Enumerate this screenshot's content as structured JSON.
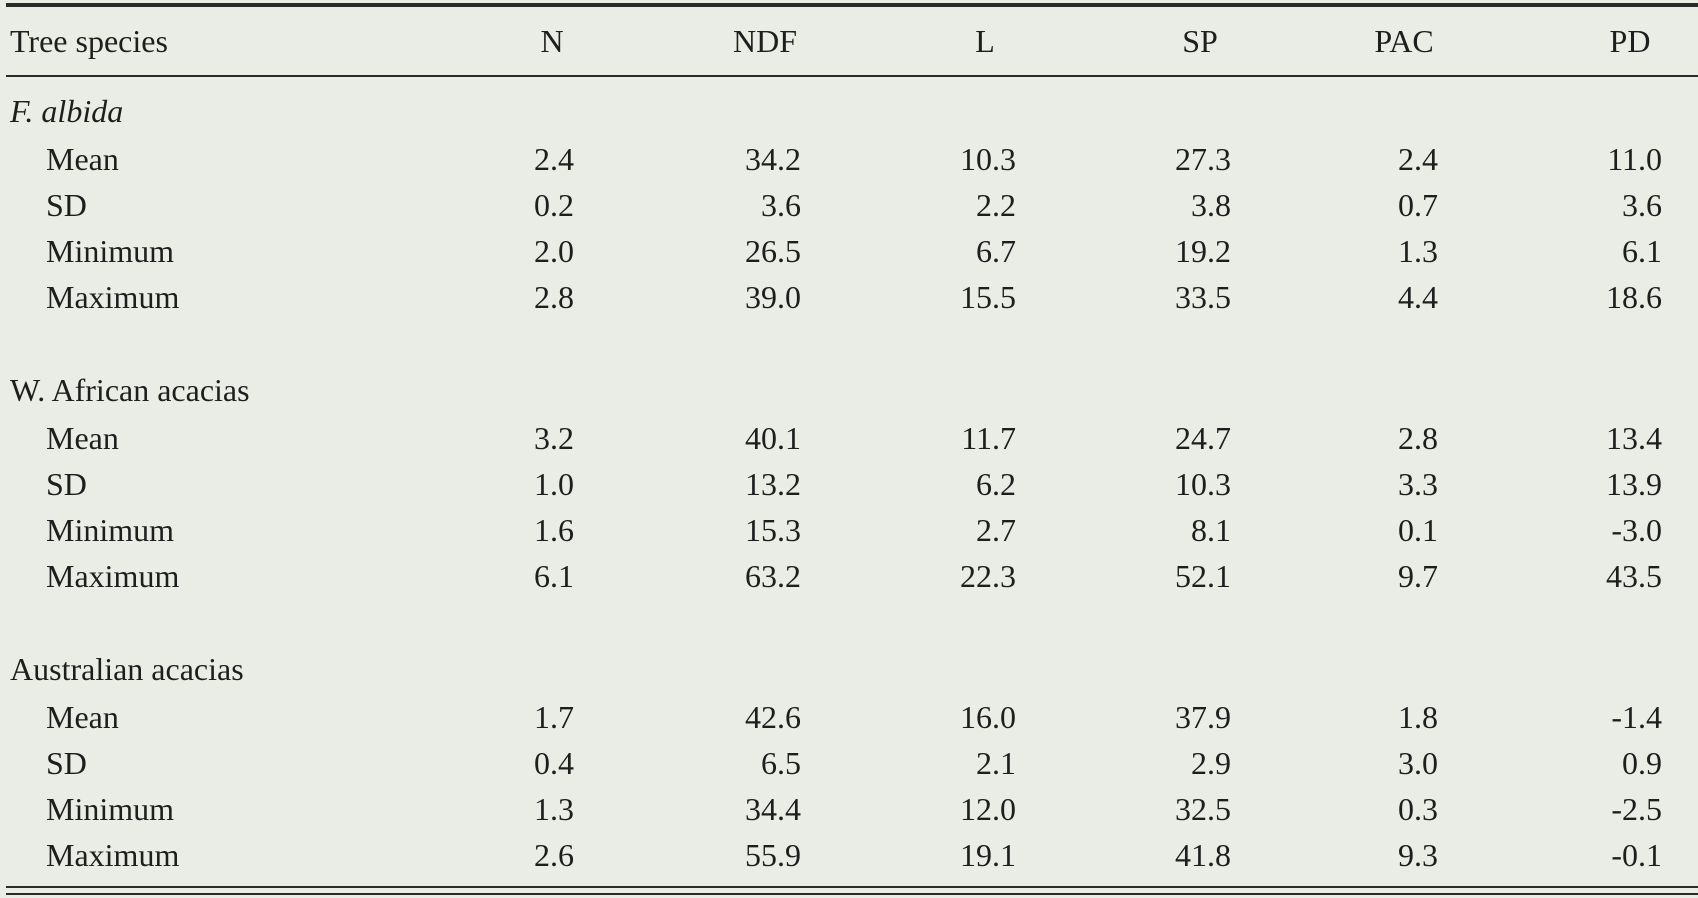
{
  "table": {
    "header": [
      "Tree species",
      "N",
      "NDF",
      "L",
      "SP",
      "PAC",
      "PD"
    ],
    "groups": [
      {
        "name": "F. albida",
        "rows": [
          [
            "Mean",
            "2.4",
            "34.2",
            "10.3",
            "27.3",
            "2.4",
            "11.0"
          ],
          [
            "SD",
            "0.2",
            "3.6",
            "2.2",
            "3.8",
            "0.7",
            "3.6"
          ],
          [
            "Minimum",
            "2.0",
            "26.5",
            "6.7",
            "19.2",
            "1.3",
            "6.1"
          ],
          [
            "Maximum",
            "2.8",
            "39.0",
            "15.5",
            "33.5",
            "4.4",
            "18.6"
          ]
        ]
      },
      {
        "name": "W. African acacias",
        "rows": [
          [
            "Mean",
            "3.2",
            "40.1",
            "11.7",
            "24.7",
            "2.8",
            "13.4"
          ],
          [
            "SD",
            "1.0",
            "13.2",
            "6.2",
            "10.3",
            "3.3",
            "13.9"
          ],
          [
            "Minimum",
            "1.6",
            "15.3",
            "2.7",
            "8.1",
            "0.1",
            "-3.0"
          ],
          [
            "Maximum",
            "6.1",
            "63.2",
            "22.3",
            "52.1",
            "9.7",
            "43.5"
          ]
        ]
      },
      {
        "name": "Australian acacias",
        "rows": [
          [
            "Mean",
            "1.7",
            "42.6",
            "16.0",
            "37.9",
            "1.8",
            "-1.4"
          ],
          [
            "SD",
            "0.4",
            "6.5",
            "2.1",
            "2.9",
            "3.0",
            "0.9"
          ],
          [
            "Minimum",
            "1.3",
            "34.4",
            "12.0",
            "32.5",
            "0.3",
            "-2.5"
          ],
          [
            "Maximum",
            "2.6",
            "55.9",
            "19.1",
            "41.8",
            "9.3",
            "-0.1"
          ]
        ]
      }
    ]
  }
}
